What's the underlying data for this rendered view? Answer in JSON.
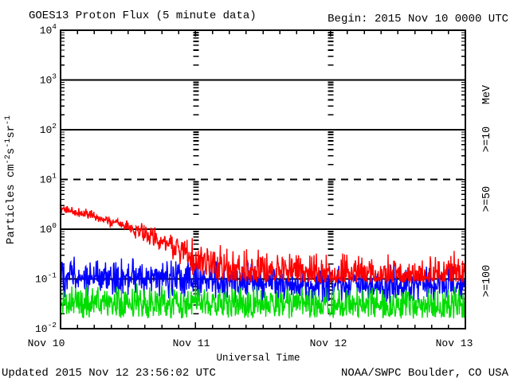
{
  "footer": {
    "updated": "Updated 2015 Nov 12 23:56:02 UTC",
    "credit": "NOAA/SWPC Boulder, CO USA"
  },
  "chart_data": {
    "type": "line",
    "title": "GOES13 Proton Flux (5 minute data)",
    "begin_label": "Begin: 2015 Nov 10 0000 UTC",
    "xlabel": "Universal Time",
    "ylabel": "Particles cm-2s-1sr-1",
    "ylabel_parts": [
      {
        "text": "Particles cm"
      },
      {
        "sup": "-2"
      },
      {
        "text": "s"
      },
      {
        "sup": "-1"
      },
      {
        "text": "sr"
      },
      {
        "sup": "-1"
      }
    ],
    "x_axis": {
      "tick_labels": [
        "Nov 10",
        "Nov 11",
        "Nov 12",
        "Nov 13"
      ],
      "range_hours": [
        0,
        72
      ],
      "minor_tick_hours": 3,
      "day_boundary_gridline_hours": [
        24,
        48
      ]
    },
    "y_axis": {
      "scale": "log",
      "limits": [
        0.01,
        10000
      ],
      "decade_exponents": [
        4,
        3,
        2,
        1,
        0,
        -1,
        -2
      ],
      "tick_labels": [
        "10^4",
        "10^3",
        "10^2",
        "10^1",
        "10^0",
        "10^-1",
        "10^-2"
      ]
    },
    "reference_lines": [
      {
        "value": 1000,
        "style": "solid"
      },
      {
        "value": 100,
        "style": "solid"
      },
      {
        "value": 10,
        "style": "dashed"
      },
      {
        "value": 1,
        "style": "solid"
      },
      {
        "value": 0.1,
        "style": "solid"
      }
    ],
    "legend": {
      "unit_label": "MeV",
      "unit_color": "#000000",
      "entries": [
        {
          "label": ">=10",
          "color": "#ff0000"
        },
        {
          "label": ">=50",
          "color": "#0000ff"
        },
        {
          "label": ">=100",
          "color": "#00dd00"
        }
      ]
    },
    "axis_color": "#000000",
    "background": "#ffffff",
    "series": [
      {
        "name": "Protons >=10 MeV",
        "legend_label": ">=10",
        "color": "#ff0000",
        "cadence_minutes": 5,
        "trend_hour_flux": [
          [
            0,
            2.6
          ],
          [
            4,
            2.1
          ],
          [
            8,
            1.55
          ],
          [
            12,
            1.1
          ],
          [
            16,
            0.75
          ],
          [
            20,
            0.45
          ],
          [
            24,
            0.25
          ],
          [
            28,
            0.18
          ],
          [
            34,
            0.15
          ],
          [
            44,
            0.135
          ],
          [
            56,
            0.12
          ],
          [
            66,
            0.12
          ],
          [
            72,
            0.135
          ]
        ],
        "noise_band_log10": [
          [
            0,
            0.07
          ],
          [
            12,
            0.1
          ],
          [
            18,
            0.16
          ],
          [
            24,
            0.26
          ],
          [
            30,
            0.3
          ],
          [
            72,
            0.3
          ]
        ],
        "floor_flux": 0.085
      },
      {
        "name": "Protons >=50 MeV",
        "legend_label": ">=50",
        "color": "#0000ff",
        "cadence_minutes": 5,
        "trend_hour_flux": [
          [
            0,
            0.12
          ],
          [
            12,
            0.105
          ],
          [
            24,
            0.09
          ],
          [
            36,
            0.085
          ],
          [
            48,
            0.08
          ],
          [
            60,
            0.075
          ],
          [
            72,
            0.08
          ]
        ],
        "noise_band_log10": [
          [
            0,
            0.28
          ],
          [
            72,
            0.28
          ]
        ],
        "floor_flux": 0.03
      },
      {
        "name": "Protons >=100 MeV",
        "legend_label": ">=100",
        "color": "#00dd00",
        "cadence_minutes": 5,
        "trend_hour_flux": [
          [
            0,
            0.033
          ],
          [
            24,
            0.031
          ],
          [
            48,
            0.03
          ],
          [
            72,
            0.031
          ]
        ],
        "noise_band_log10": [
          [
            0,
            0.26
          ],
          [
            72,
            0.26
          ]
        ],
        "floor_flux": 0.016
      }
    ]
  }
}
